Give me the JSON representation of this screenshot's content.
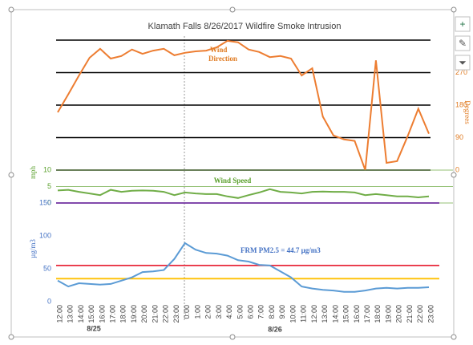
{
  "chart_data": {
    "type": "line",
    "title": "Klamath Falls 8/26/2017 Wildfire Smoke Intrusion",
    "categories": [
      "12:00",
      "13:00",
      "14:00",
      "15:00",
      "16:00",
      "17:00",
      "18:00",
      "19:00",
      "20:00",
      "21:00",
      "22:00",
      "23:00",
      "0:00",
      "1:00",
      "2:00",
      "3:00",
      "4:00",
      "5:00",
      "6:00",
      "7:00",
      "8:00",
      "9:00",
      "10:00",
      "11:00",
      "12:00",
      "13:00",
      "14:00",
      "15:00",
      "16:00",
      "17:00",
      "18:00",
      "19:00",
      "20:00",
      "21:00",
      "22:00",
      "23:00"
    ],
    "date_labels": [
      "8/25",
      "8/26"
    ],
    "panels": [
      {
        "axis_label": "Degrees",
        "axis_color": "#e07b22",
        "axis_side": "right",
        "ylim": [
          0,
          360
        ],
        "yticks": [
          0,
          90,
          180,
          270,
          360
        ],
        "grid": true,
        "grid_color": "#000000",
        "series": [
          {
            "name": "Wind Direction",
            "color": "#ed7d31",
            "values": [
              160,
              210,
              262,
              311,
              336,
              309,
              316,
              334,
              322,
              331,
              336,
              318,
              325,
              329,
              331,
              340,
              358,
              354,
              334,
              327,
              313,
              316,
              309,
              262,
              282,
              148,
              96,
              85,
              81,
              0,
              304,
              20,
              25,
              94,
              170,
              101
            ]
          }
        ]
      },
      {
        "axis_label": "mph",
        "axis_color": "#5aa02c",
        "axis_side": "left",
        "ylim": [
          0,
          10
        ],
        "yticks": [
          0,
          5,
          10
        ],
        "grid": true,
        "grid_color": "#70ad47",
        "series": [
          {
            "name": "Wind Speed",
            "color": "#70ad47",
            "values": [
              3.8,
              4.0,
              3.4,
              2.9,
              2.4,
              4.0,
              3.4,
              3.7,
              3.8,
              3.7,
              3.4,
              2.4,
              3.2,
              2.9,
              2.7,
              2.7,
              2.0,
              1.5,
              2.4,
              3.2,
              4.2,
              3.4,
              3.2,
              2.9,
              3.4,
              3.5,
              3.4,
              3.4,
              3.2,
              2.4,
              2.7,
              2.4,
              2.0,
              2.0,
              1.7,
              2.0
            ]
          }
        ]
      },
      {
        "axis_label": "µg/m3",
        "axis_color": "#4472c4",
        "axis_side": "left",
        "ylim": [
          0,
          150
        ],
        "yticks": [
          0,
          50,
          100,
          150
        ],
        "grid": false,
        "reference_lines": [
          {
            "value": 150,
            "color": "#7030a0"
          },
          {
            "value": 55,
            "color": "#e8283a"
          },
          {
            "value": 35,
            "color": "#ffc000"
          }
        ],
        "series": [
          {
            "name": "FRM PM2.5 = 44.7 µg/m3",
            "color": "#5b9bd5",
            "values": [
              32,
              23,
              28,
              27,
              26,
              27,
              32,
              37,
              45,
              46,
              48,
              65,
              89,
              79,
              74,
              73,
              70,
              63,
              61,
              56,
              55,
              46,
              37,
              23,
              20,
              18,
              17,
              15,
              15,
              17,
              20,
              21,
              20,
              21,
              21,
              22
            ]
          }
        ]
      }
    ]
  }
}
